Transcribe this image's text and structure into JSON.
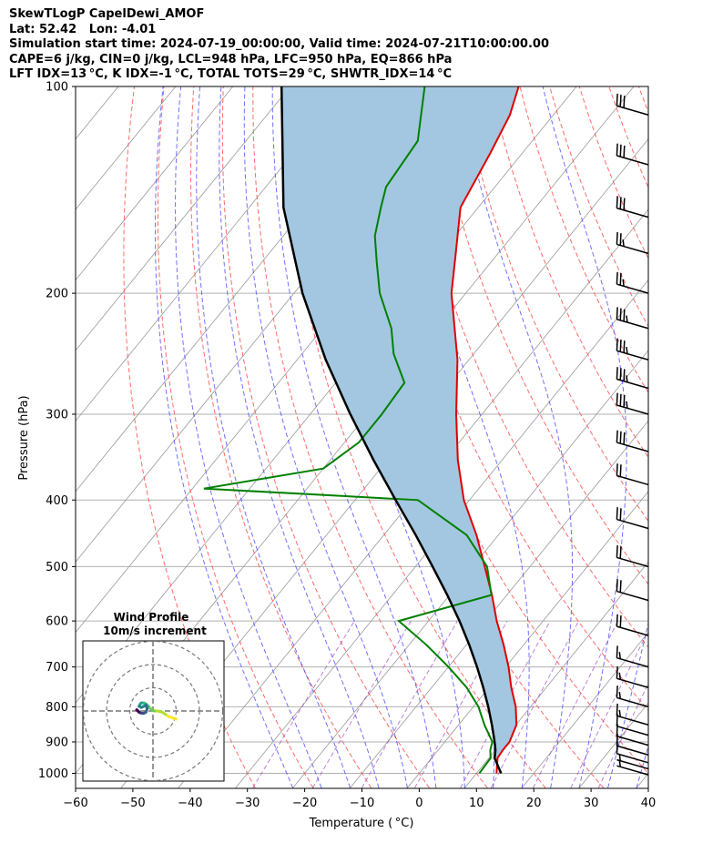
{
  "header": {
    "line1": "SkewTLogP CapelDewi_AMOF",
    "line2": "Lat: 52.42   Lon: -4.01",
    "line3": "Simulation start time: 2024-07-19_00:00:00, Valid time: 2024-07-21T10:00:00.00",
    "line4": "CAPE=6 j/kg, CIN=0 j/kg, LCL=948 hPa, LFC=950 hPa, EQ=866 hPa",
    "line5": "LFT IDX=13 °C, K IDX=-1 °C, TOTAL TOTS=29 °C, SHWTR_IDX=14 °C"
  },
  "colors": {
    "temperature": "#e00000",
    "dewpoint": "#008000",
    "parcel": "#000000",
    "cape_fill": "#a3c7e0",
    "dry_adiabat": "#ff5050",
    "moist_adiabat": "#4040ff",
    "mixing_ratio": "#9030c0",
    "isotherm": "#999999"
  },
  "chart_data": [
    {
      "type": "line",
      "subtype": "skew-t log-p",
      "xlabel": "Temperature ( °C)",
      "ylabel": "Pressure (hPa)",
      "xlim": [
        -60,
        40
      ],
      "ylim": [
        1050,
        100
      ],
      "xticks": [
        "−60",
        "−50",
        "−40",
        "−30",
        "−20",
        "−10",
        "0",
        "10",
        "20",
        "30",
        "40"
      ],
      "yticks": [
        "100",
        "200",
        "300",
        "400",
        "500",
        "600",
        "700",
        "800",
        "900",
        "1000"
      ],
      "grid": true,
      "series": [
        {
          "name": "temperature",
          "pressure": [
            1000,
            950,
            925,
            900,
            850,
            800,
            750,
            700,
            650,
            600,
            550,
            500,
            450,
            400,
            350,
            300,
            250,
            200,
            175,
            150,
            125,
            110,
            100
          ],
          "values": [
            13.5,
            11.5,
            11.3,
            11.3,
            10.1,
            7.4,
            3.9,
            0.5,
            -3.5,
            -8.1,
            -12.6,
            -17.9,
            -23.8,
            -31.0,
            -37.7,
            -44.5,
            -52.0,
            -62.5,
            -67.4,
            -73.1,
            -75.6,
            -77.6,
            -80.1
          ]
        },
        {
          "name": "dewpoint",
          "pressure": [
            1000,
            950,
            925,
            900,
            850,
            800,
            750,
            700,
            650,
            600,
            550,
            500,
            450,
            400,
            385,
            360,
            330,
            300,
            270,
            245,
            225,
            200,
            180,
            165,
            150,
            140,
            120,
            100
          ],
          "values": [
            10.5,
            10.3,
            9.1,
            8.3,
            4.5,
            0.9,
            -3.9,
            -10.0,
            -17.0,
            -25.2,
            -12.7,
            -17.5,
            -25.5,
            -39.0,
            -78.0,
            -60.0,
            -57.5,
            -57.5,
            -58.0,
            -64.0,
            -68.0,
            -75.0,
            -80.0,
            -84.0,
            -87.0,
            -89.0,
            -90.0,
            -96.5
          ]
        },
        {
          "name": "parcel",
          "pressure": [
            1000,
            950,
            925,
            900,
            850,
            800,
            750,
            700,
            650,
            600,
            550,
            500,
            450,
            400,
            350,
            300,
            250,
            200,
            150,
            100
          ],
          "values": [
            14.3,
            11.0,
            10.0,
            8.7,
            5.8,
            2.6,
            -1.0,
            -5.0,
            -9.5,
            -14.6,
            -20.4,
            -27.0,
            -34.4,
            -42.9,
            -52.4,
            -63.0,
            -75.0,
            -88.5,
            -104.0,
            -121.5
          ]
        }
      ],
      "cape_region": "shaded between parcel and temperature curves",
      "wind_barbs": {
        "pressure": [
          110,
          130,
          155,
          175,
          200,
          225,
          250,
          275,
          300,
          340,
          380,
          440,
          500,
          560,
          630,
          700,
          750,
          800,
          850,
          880,
          910,
          940,
          965,
          985,
          1005
        ],
        "speed_kt": [
          30,
          30,
          30,
          25,
          25,
          35,
          35,
          35,
          35,
          30,
          20,
          20,
          20,
          20,
          20,
          15,
          15,
          15,
          15,
          10,
          10,
          10,
          10,
          5,
          5
        ]
      }
    },
    {
      "type": "line",
      "subtype": "hodograph",
      "title": "Wind Profile",
      "subtitle": "10m/s increment",
      "rings_ms": [
        10,
        20,
        30
      ],
      "u": [
        10,
        8.5,
        7,
        5.5,
        4,
        2,
        0.5,
        -1,
        -2,
        -3,
        -4,
        -5,
        -5.5,
        -6,
        -5,
        -4,
        -3,
        -2.5,
        -3,
        -4,
        -5,
        -6,
        -6.5,
        -7,
        -7,
        -6.5,
        -6
      ],
      "v": [
        -3.5,
        -3,
        -2.5,
        -1.5,
        -0.5,
        0,
        0,
        1,
        2,
        3,
        3.5,
        3.5,
        3,
        2,
        1.5,
        2,
        2.5,
        1,
        -0.5,
        -1,
        -1,
        -0.5,
        0,
        0.5,
        0.5,
        0,
        -0.5
      ]
    }
  ]
}
